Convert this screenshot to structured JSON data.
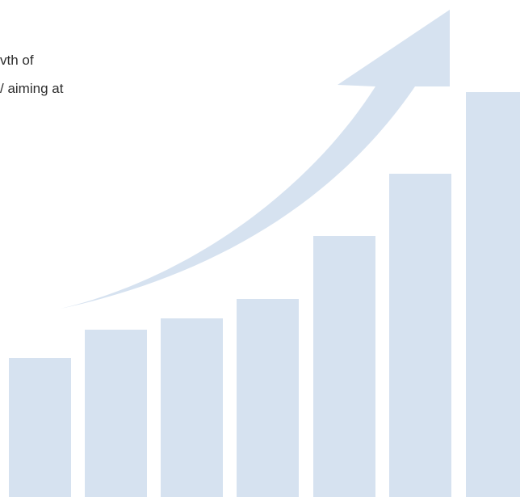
{
  "text_lines": [
    "vth of",
    "/ aiming at"
  ],
  "graphic": {
    "fill_color": "#d6e2f0",
    "bar_levels": [
      0.279,
      0.337,
      0.36,
      0.399,
      0.525,
      0.651,
      0.814
    ]
  }
}
